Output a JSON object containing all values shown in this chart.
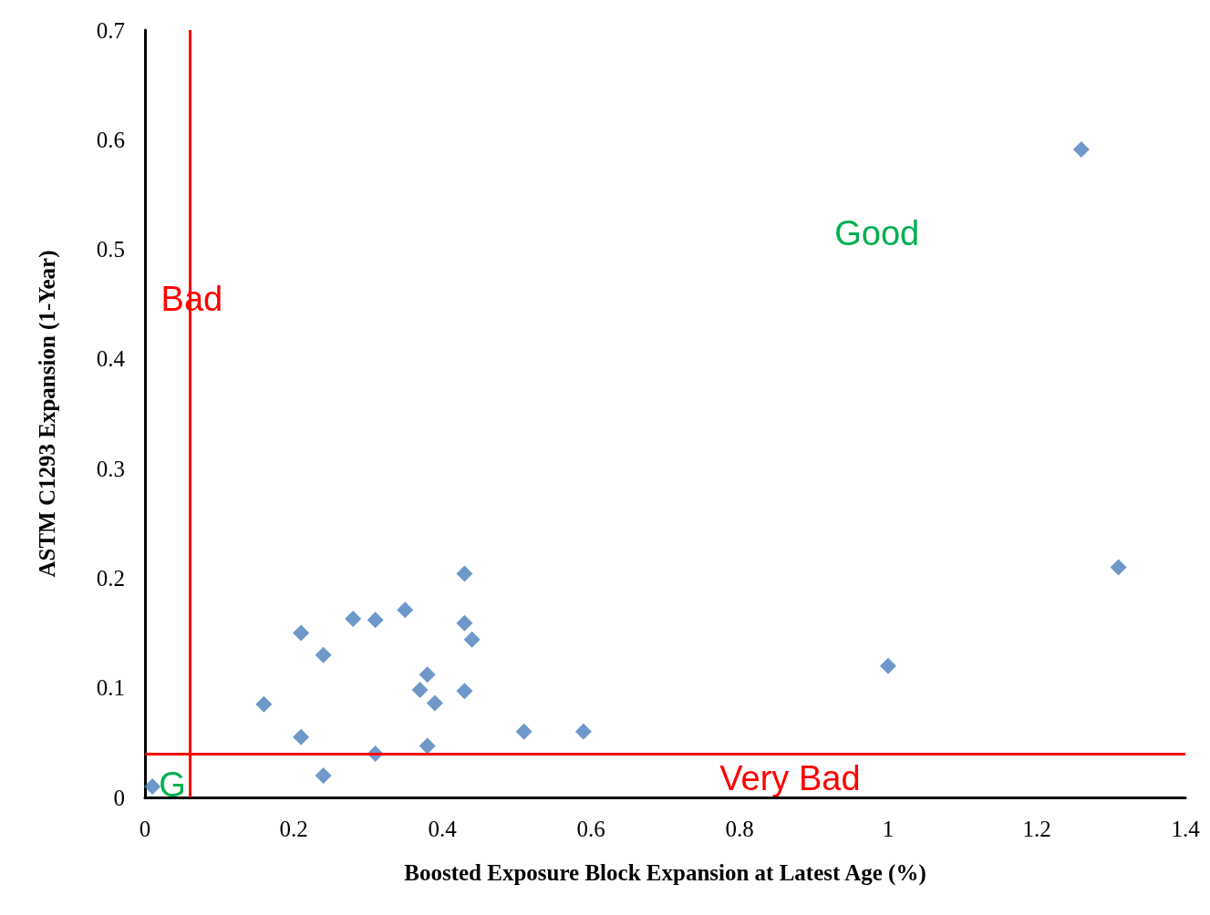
{
  "chart_data": {
    "type": "scatter",
    "xlabel": "Boosted Exposure Block Expansion at Latest Age (%)",
    "ylabel": "ASTM C1293 Expansion (1-Year)",
    "x": [
      0.01,
      0.16,
      0.21,
      0.21,
      0.24,
      0.24,
      0.28,
      0.31,
      0.31,
      0.35,
      0.38,
      0.37,
      0.39,
      0.38,
      0.43,
      0.43,
      0.44,
      0.43,
      0.51,
      0.59,
      1.0,
      1.26,
      1.31
    ],
    "series": [
      {
        "color": "#4a7ebb",
        "values": [
          0.01,
          0.085,
          0.15,
          0.055,
          0.13,
          0.02,
          0.163,
          0.162,
          0.04,
          0.171,
          0.112,
          0.098,
          0.086,
          0.047,
          0.204,
          0.159,
          0.144,
          0.097,
          0.06,
          0.06,
          0.12,
          0.591,
          0.21
        ]
      }
    ],
    "xlim": [
      0,
      1.4
    ],
    "xticks": [
      0,
      0.2,
      0.4,
      0.6,
      0.8,
      1,
      1.2,
      1.4
    ],
    "ylim": [
      0,
      0.7
    ],
    "yticks": [
      0,
      0.1,
      0.2,
      0.3,
      0.4,
      0.5,
      0.6,
      0.7
    ],
    "ref_lines": [
      {
        "axis": "x",
        "value": 0.063,
        "label": "Bad",
        "color": "#ff0000"
      },
      {
        "axis": "y",
        "value": 0.038,
        "label": "Very Bad",
        "color": "#ff0000"
      }
    ],
    "annotations": [
      "Good",
      "G"
    ],
    "grid": false,
    "marker": "diamond"
  }
}
